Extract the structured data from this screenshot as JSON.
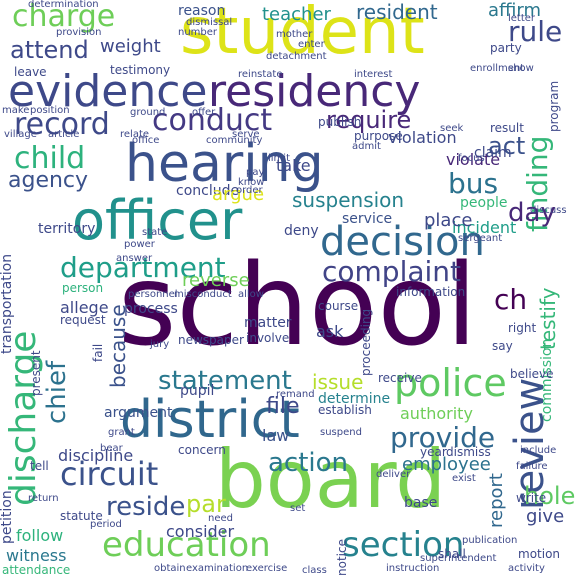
{
  "words": [
    {
      "text": "school",
      "color": "#440154"
    },
    {
      "text": "board",
      "color": "#7ad151"
    },
    {
      "text": "student",
      "color": "#dde318"
    },
    {
      "text": "hearing",
      "color": "#3b528b"
    },
    {
      "text": "officer",
      "color": "#21918c"
    },
    {
      "text": "district",
      "color": "#30678d"
    },
    {
      "text": "evidence",
      "color": "#3e4989"
    },
    {
      "text": "residency",
      "color": "#482878"
    },
    {
      "text": "decision",
      "color": "#31688e"
    },
    {
      "text": "review",
      "color": "#3b528b"
    },
    {
      "text": "discharge",
      "color": "#35b779"
    },
    {
      "text": "police",
      "color": "#5ec962"
    },
    {
      "text": "education",
      "color": "#6ece58"
    },
    {
      "text": "section",
      "color": "#26828e"
    },
    {
      "text": "circuit",
      "color": "#3b528b"
    },
    {
      "text": "conduct",
      "color": "#443983"
    },
    {
      "text": "record",
      "color": "#3e4989"
    },
    {
      "text": "charge",
      "color": "#6ece58"
    },
    {
      "text": "complaint",
      "color": "#414487"
    },
    {
      "text": "department",
      "color": "#1f9e89"
    },
    {
      "text": "child",
      "color": "#2db27d"
    },
    {
      "text": "statement",
      "color": "#2a788e"
    },
    {
      "text": "provide",
      "color": "#31688e"
    },
    {
      "text": "finding",
      "color": "#35b779"
    },
    {
      "text": "chief",
      "color": "#2c728e"
    },
    {
      "text": "action",
      "color": "#2a788e"
    },
    {
      "text": "attend",
      "color": "#3e4989"
    },
    {
      "text": "agency",
      "color": "#3b528b"
    },
    {
      "text": "require",
      "color": "#482878"
    },
    {
      "text": "rule",
      "color": "#3e4989"
    },
    {
      "text": "act",
      "color": "#3b528b"
    },
    {
      "text": "bus",
      "color": "#2c728e"
    },
    {
      "text": "day",
      "color": "#482878"
    },
    {
      "text": "weight",
      "color": "#3e4989"
    },
    {
      "text": "suspension",
      "color": "#26828e"
    },
    {
      "text": "reside",
      "color": "#3b528b"
    },
    {
      "text": "par",
      "color": "#b5de2b"
    },
    {
      "text": "reverse",
      "color": "#6ece58"
    },
    {
      "text": "issue",
      "color": "#b5de2b"
    },
    {
      "text": "file",
      "color": "#3e4989"
    },
    {
      "text": "testify",
      "color": "#35b779"
    },
    {
      "text": "ch",
      "color": "#440154"
    },
    {
      "text": "report",
      "color": "#31688e"
    },
    {
      "text": "resident",
      "color": "#31688e"
    },
    {
      "text": "teacher",
      "color": "#21918c"
    },
    {
      "text": "reason",
      "color": "#3b528b"
    },
    {
      "text": "affirm",
      "color": "#2a788e"
    },
    {
      "text": "discipline",
      "color": "#3e4989"
    },
    {
      "text": "employee",
      "color": "#2c728e"
    },
    {
      "text": "witness",
      "color": "#2a788e"
    },
    {
      "text": "follow",
      "color": "#2db27d"
    },
    {
      "text": "consider",
      "color": "#3e4989"
    },
    {
      "text": "give",
      "color": "#3e4989"
    },
    {
      "text": "hole",
      "color": "#5ec962"
    },
    {
      "text": "law",
      "color": "#3b528b"
    },
    {
      "text": "because",
      "color": "#3b528b"
    },
    {
      "text": "allege",
      "color": "#3e4989"
    },
    {
      "text": "violate",
      "color": "#482878"
    },
    {
      "text": "violation",
      "color": "#3e4989"
    },
    {
      "text": "incident",
      "color": "#1f9e89"
    },
    {
      "text": "place",
      "color": "#3e4989"
    },
    {
      "text": "service",
      "color": "#3b528b"
    },
    {
      "text": "people",
      "color": "#35b779"
    },
    {
      "text": "authority",
      "color": "#6ece58"
    },
    {
      "text": "determine",
      "color": "#26828e"
    },
    {
      "text": "argument",
      "color": "#3b528b"
    },
    {
      "text": "pupil",
      "color": "#3e4989"
    },
    {
      "text": "information",
      "color": "#3e4989"
    },
    {
      "text": "ask",
      "color": "#3e4989"
    },
    {
      "text": "matter",
      "color": "#3e4989"
    },
    {
      "text": "take",
      "color": "#3e4989"
    },
    {
      "text": "claim",
      "color": "#3e4989"
    },
    {
      "text": "deny",
      "color": "#3e4989"
    },
    {
      "text": "territory",
      "color": "#3e4989"
    },
    {
      "text": "conclude",
      "color": "#3e4989"
    },
    {
      "text": "argue",
      "color": "#dde318"
    },
    {
      "text": "process",
      "color": "#3e4989"
    },
    {
      "text": "request",
      "color": "#3e4989"
    },
    {
      "text": "person",
      "color": "#2db27d"
    },
    {
      "text": "course",
      "color": "#3e4989"
    },
    {
      "text": "transportation",
      "color": "#3e4989"
    },
    {
      "text": "petition",
      "color": "#3e4989"
    },
    {
      "text": "attendance",
      "color": "#35b779"
    },
    {
      "text": "statute",
      "color": "#3e4989"
    },
    {
      "text": "concern",
      "color": "#3e4989"
    },
    {
      "text": "establish",
      "color": "#3e4989"
    },
    {
      "text": "receive",
      "color": "#3e4989"
    },
    {
      "text": "proceeding",
      "color": "#3e4989"
    },
    {
      "text": "involve",
      "color": "#3e4989"
    },
    {
      "text": "newspaper",
      "color": "#3e4989"
    },
    {
      "text": "base",
      "color": "#3e4989"
    },
    {
      "text": "dismiss",
      "color": "#3e4989"
    },
    {
      "text": "year",
      "color": "#3e4989"
    },
    {
      "text": "tell",
      "color": "#3e4989"
    },
    {
      "text": "leave",
      "color": "#3e4989"
    },
    {
      "text": "testimony",
      "color": "#3e4989"
    },
    {
      "text": "party",
      "color": "#3e4989"
    },
    {
      "text": "enrollment",
      "color": "#3e4989"
    },
    {
      "text": "purpose",
      "color": "#3e4989"
    },
    {
      "text": "publish",
      "color": "#3e4989"
    },
    {
      "text": "result",
      "color": "#3e4989"
    },
    {
      "text": "program",
      "color": "#3e4989"
    },
    {
      "text": "commission",
      "color": "#35b779"
    },
    {
      "text": "right",
      "color": "#3e4989"
    },
    {
      "text": "say",
      "color": "#3e4989"
    },
    {
      "text": "believe",
      "color": "#3e4989"
    },
    {
      "text": "present",
      "color": "#3e4989"
    },
    {
      "text": "fail",
      "color": "#3e4989"
    },
    {
      "text": "shall",
      "color": "#3e4989"
    },
    {
      "text": "write",
      "color": "#3e4989"
    },
    {
      "text": "notice",
      "color": "#3e4989"
    },
    {
      "text": "motion",
      "color": "#3e4989"
    },
    {
      "text": "instruction",
      "color": "#3e4989"
    },
    {
      "text": "activity",
      "color": "#3e4989"
    },
    {
      "text": "obtain",
      "color": "#3e4989"
    },
    {
      "text": "class",
      "color": "#3e4989"
    },
    {
      "text": "determination",
      "color": "#3e4989"
    },
    {
      "text": "dismissal",
      "color": "#3e4989"
    },
    {
      "text": "provision",
      "color": "#3e4989"
    },
    {
      "text": "number",
      "color": "#3e4989"
    },
    {
      "text": "mother",
      "color": "#3e4989"
    },
    {
      "text": "enter",
      "color": "#3e4989"
    },
    {
      "text": "reinstate",
      "color": "#3e4989"
    },
    {
      "text": "interest",
      "color": "#3e4989"
    },
    {
      "text": "make",
      "color": "#3e4989"
    },
    {
      "text": "position",
      "color": "#3e4989"
    },
    {
      "text": "ground",
      "color": "#3e4989"
    },
    {
      "text": "offer",
      "color": "#3e4989"
    },
    {
      "text": "village",
      "color": "#3e4989"
    },
    {
      "text": "article",
      "color": "#3e4989"
    },
    {
      "text": "relate",
      "color": "#3e4989"
    },
    {
      "text": "serve",
      "color": "#3e4989"
    },
    {
      "text": "detachment",
      "color": "#3e4989"
    },
    {
      "text": "letter",
      "color": "#3e4989"
    },
    {
      "text": "show",
      "color": "#3e4989"
    },
    {
      "text": "seek",
      "color": "#3e4989"
    },
    {
      "text": "focus",
      "color": "#3e4989"
    },
    {
      "text": "sergeant",
      "color": "#3e4989"
    },
    {
      "text": "discuss",
      "color": "#3e4989"
    },
    {
      "text": "grant",
      "color": "#3e4989"
    },
    {
      "text": "bear",
      "color": "#3e4989"
    },
    {
      "text": "suspend",
      "color": "#3e4989"
    },
    {
      "text": "deliver",
      "color": "#3e4989"
    },
    {
      "text": "exist",
      "color": "#3e4989"
    },
    {
      "text": "failure",
      "color": "#3e4989"
    },
    {
      "text": "include",
      "color": "#3e4989"
    },
    {
      "text": "publication",
      "color": "#3e4989"
    },
    {
      "text": "superintendent",
      "color": "#3e4989"
    },
    {
      "text": "examination",
      "color": "#3e4989"
    },
    {
      "text": "exercise",
      "color": "#3e4989"
    },
    {
      "text": "return",
      "color": "#3e4989"
    },
    {
      "text": "period",
      "color": "#3e4989"
    },
    {
      "text": "need",
      "color": "#3e4989"
    },
    {
      "text": "set",
      "color": "#3e4989"
    },
    {
      "text": "jury",
      "color": "#3e4989"
    },
    {
      "text": "remand",
      "color": "#3e4989"
    },
    {
      "text": "misconduct",
      "color": "#3e4989"
    },
    {
      "text": "allow",
      "color": "#3e4989"
    },
    {
      "text": "personnel",
      "color": "#3e4989"
    },
    {
      "text": "power",
      "color": "#3e4989"
    },
    {
      "text": "answer",
      "color": "#3e4989"
    },
    {
      "text": "know",
      "color": "#3e4989"
    },
    {
      "text": "pay",
      "color": "#3e4989"
    },
    {
      "text": "office",
      "color": "#3e4989"
    },
    {
      "text": "community",
      "color": "#3e4989"
    },
    {
      "text": "admit",
      "color": "#3e4989"
    },
    {
      "text": "limit",
      "color": "#3e4989"
    },
    {
      "text": "order",
      "color": "#3e4989"
    },
    {
      "text": "state",
      "color": "#3e4989"
    }
  ]
}
